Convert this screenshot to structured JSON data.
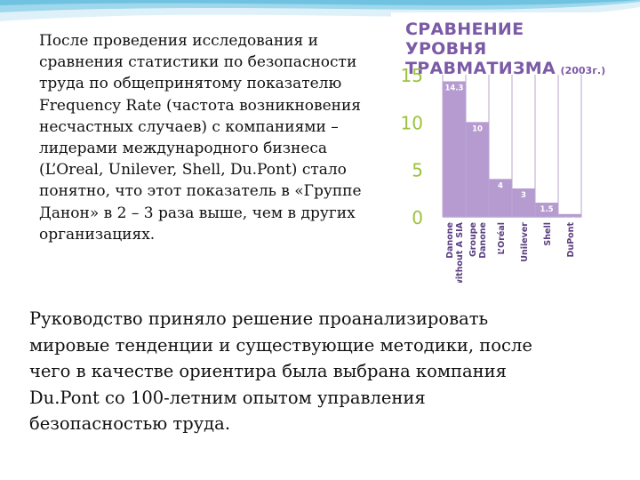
{
  "text": {
    "para1": "После проведения исследования и\nсравнения статистики по безопасности\nтруда по общепринятому показателю\nFrequency Rate (частота возникновения\nнесчастных случаев) с компаниями –\nлидерами международного бизнеса\n(L’Oreal, Unilever, Shell, Du.Pont) стало\nпонятно, что этот показатель в «Группе\nДанон» в 2 – 3 раза выше, чем в других\nорганизациях.",
    "para2": "Руководство приняло решение проанализировать\nмировые тенденции и существующие методики, после\nчего в качестве ориентира была выбрана компания\nDu.Pont со 100-летним опытом управления\nбезопасностью труда."
  },
  "chart_title": {
    "line1": "СРАВНЕНИЕ УРОВНЯ",
    "line2": "ТРАВМАТИЗМА",
    "year": "(2003г.)"
  },
  "colors": {
    "bar": "#b69bd0",
    "grid": "#b9a6d2",
    "title": "#7b5aa6",
    "tick": "#9bc23c",
    "category": "#5a3e80",
    "wave": "#6fc3e0"
  },
  "chart_data": {
    "type": "bar",
    "title": "СРАВНЕНИЕ УРОВНЯ ТРАВМАТИЗМА (2003г.)",
    "categories": [
      [
        "Danone",
        "without A SIA"
      ],
      [
        "Groupe",
        "Danone"
      ],
      [
        "L’Oréal"
      ],
      [
        "Unilever"
      ],
      [
        "Shell"
      ],
      [
        "DuPont"
      ]
    ],
    "values": [
      14.3,
      10,
      4,
      3,
      1.5,
      0.3
    ],
    "data_labels": [
      "14.3",
      "10",
      "4",
      "3",
      "1.5",
      "0.3"
    ],
    "y_ticks": [
      "15",
      "10",
      "5",
      "0"
    ],
    "ylim": [
      0,
      15
    ],
    "grid": true
  }
}
